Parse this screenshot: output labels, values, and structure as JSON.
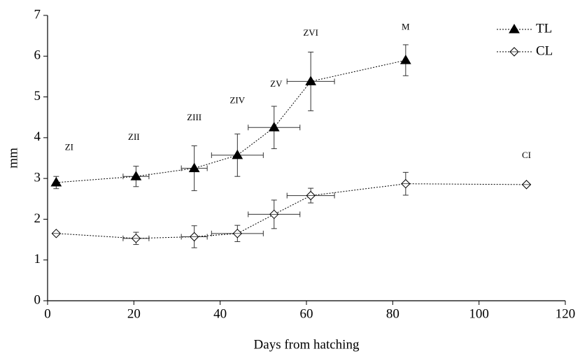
{
  "chart_data": {
    "type": "line",
    "x_label": "Days from hatching",
    "y_label": "mm",
    "xlim": [
      0,
      120
    ],
    "xticks": [
      0,
      20,
      40,
      60,
      80,
      100,
      120
    ],
    "ylim": [
      0,
      7
    ],
    "yticks": [
      0,
      1,
      2,
      3,
      4,
      5,
      6,
      7
    ],
    "legend": "top-right",
    "line_style": "dotted",
    "series": [
      {
        "name": "TL",
        "color": "#000000",
        "marker": "triangle",
        "filled": true,
        "x": [
          2,
          20.5,
          34,
          44,
          52.5,
          61,
          83
        ],
        "values": [
          2.9,
          3.05,
          3.25,
          3.57,
          4.25,
          5.38,
          5.9
        ],
        "x_err": [
          null,
          3,
          3,
          6,
          6,
          5.5,
          null
        ],
        "y_err": [
          0.15,
          0.25,
          0.55,
          0.52,
          0.52,
          0.72,
          0.38
        ]
      },
      {
        "name": "CL",
        "color": "#000000",
        "marker": "diamond",
        "filled": false,
        "x": [
          2,
          20.5,
          34,
          44,
          52.5,
          61,
          83,
          111
        ],
        "values": [
          1.65,
          1.53,
          1.57,
          1.65,
          2.12,
          2.58,
          2.87,
          2.85
        ],
        "x_err": [
          null,
          3,
          3,
          6,
          6,
          5.5,
          null,
          null
        ],
        "y_err": [
          null,
          0.15,
          0.27,
          0.2,
          0.35,
          0.18,
          0.28,
          null
        ]
      }
    ],
    "annotations": [
      {
        "text": "ZI",
        "x": 5,
        "y": 3.75
      },
      {
        "text": "ZII",
        "x": 20,
        "y": 4.0
      },
      {
        "text": "ZIII",
        "x": 34,
        "y": 4.48
      },
      {
        "text": "ZIV",
        "x": 44,
        "y": 4.9
      },
      {
        "text": "ZV",
        "x": 53,
        "y": 5.3
      },
      {
        "text": "ZVI",
        "x": 61,
        "y": 6.55
      },
      {
        "text": "M",
        "x": 83,
        "y": 6.7
      },
      {
        "text": "CI",
        "x": 111,
        "y": 3.55
      }
    ]
  }
}
